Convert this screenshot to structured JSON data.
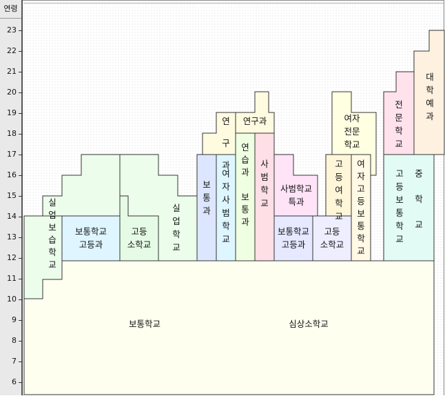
{
  "axis": {
    "title": "연령",
    "ticks": [
      "6",
      "7",
      "8",
      "9",
      "10",
      "11",
      "12",
      "13",
      "14",
      "15",
      "16",
      "17",
      "18",
      "19",
      "20",
      "21",
      "22",
      "23"
    ]
  },
  "blocks": [
    {
      "id": "base",
      "label": "보통학교",
      "fill": "#fffff0"
    },
    {
      "id": "base2",
      "label": "심상소학교",
      "fill": "#fffff0"
    },
    {
      "id": "silup1",
      "label": "실업보습학교",
      "fill": "#ecfdec"
    },
    {
      "id": "botong-godeung-1",
      "label": "보통학교 고등과",
      "fill": "#dff5ff"
    },
    {
      "id": "godeung-sohak-1",
      "label": "고등 소학교",
      "fill": "#e6fbe6"
    },
    {
      "id": "silup2",
      "label": "실업학교",
      "fill": "#ecfdec"
    },
    {
      "id": "botonggwa",
      "label": "보통과",
      "fill": "#dde6ff"
    },
    {
      "id": "yeoja-sabeom",
      "label": "여자사범학교",
      "fill": "#ddf6ff"
    },
    {
      "id": "yeongu1",
      "label": "연구과",
      "fill": "#fffbe0"
    },
    {
      "id": "yeonseup",
      "label": "연습과 보통과",
      "fill": "#efffe2"
    },
    {
      "id": "yeongu2",
      "label": "연구과",
      "fill": "#fffbe0"
    },
    {
      "id": "sabeom",
      "label": "사범학교",
      "fill": "#ffdfe6"
    },
    {
      "id": "sabeom-teukgwa",
      "label": "사범학교 특과",
      "fill": "#ffe3f7"
    },
    {
      "id": "botong-godeung-2",
      "label": "보통학교 고등과",
      "fill": "#e6e9ff"
    },
    {
      "id": "godeung-sohak-2",
      "label": "고등 소학교",
      "fill": "#eeeeff"
    },
    {
      "id": "yeoja-jeonmun",
      "label": "여자 전문 학교",
      "fill": "#ffffe2"
    },
    {
      "id": "godeung-yeohak",
      "label": "고등여학교",
      "fill": "#fff5d8"
    },
    {
      "id": "yeoja-godeung-botong",
      "label": "여자고등보통학교",
      "fill": "#fff9e5"
    },
    {
      "id": "jeonmun",
      "label": "전문학교",
      "fill": "#ffe2ec"
    },
    {
      "id": "daehak-yegwa",
      "label": "대학예과",
      "fill": "#fff1e0"
    },
    {
      "id": "godeung-botong",
      "label": "고등보통학교",
      "fill": "#e3fbf5"
    },
    {
      "id": "junghak",
      "label": "중학교",
      "fill": "#e3fbf5"
    }
  ],
  "colors": {
    "stroke": "#333333",
    "axis_bg": "#e9e9e9"
  }
}
